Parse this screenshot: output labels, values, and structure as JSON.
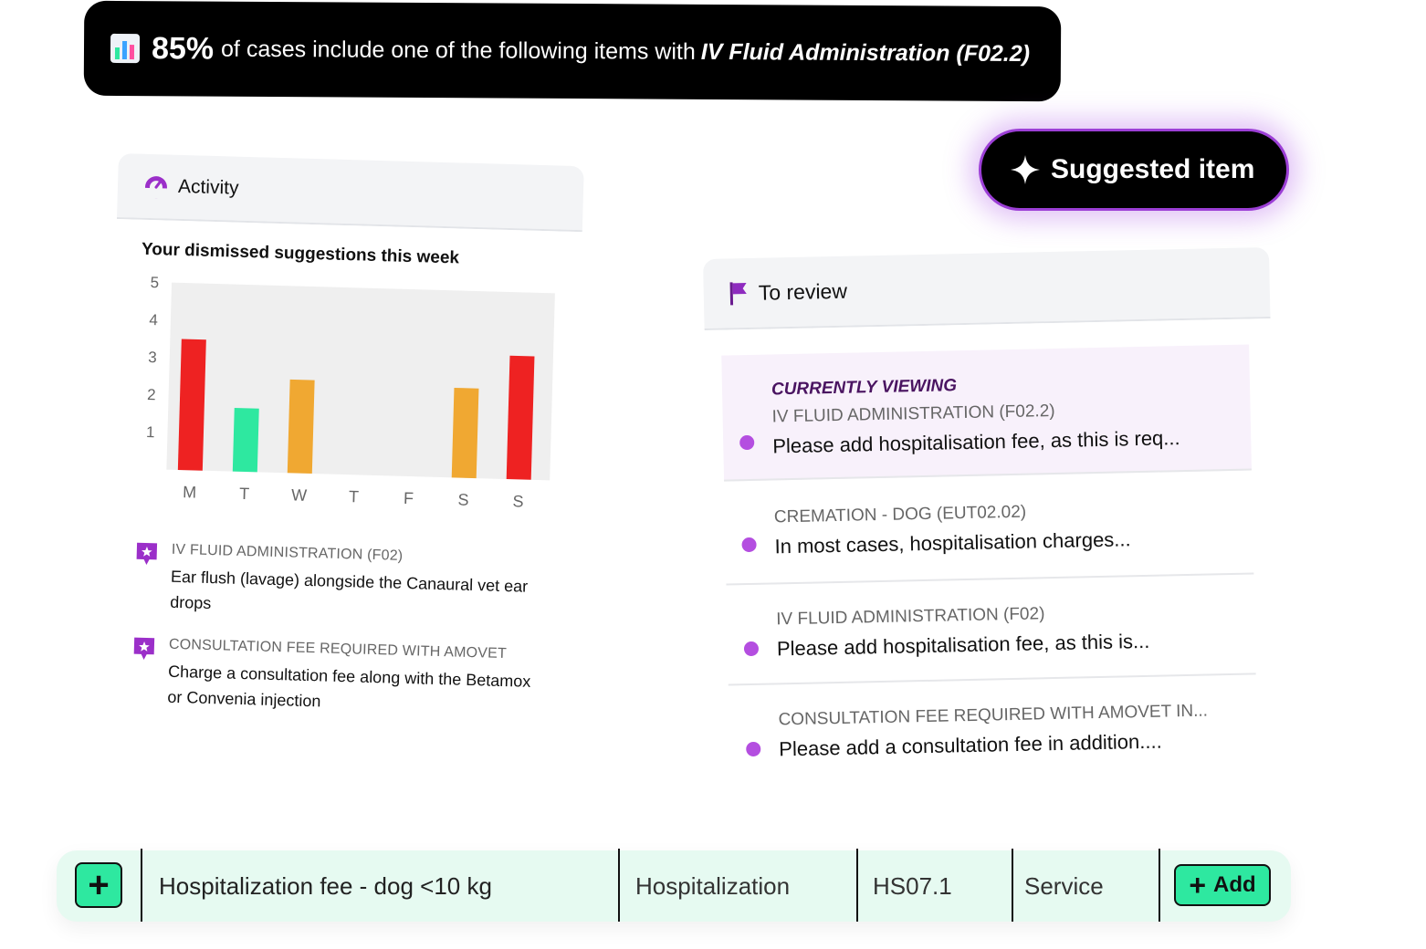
{
  "banner": {
    "percent": "85%",
    "text": "of cases include one of the following items with",
    "item": "IV Fluid Administration (F02.2)",
    "icon": "bar-chart-icon"
  },
  "suggested": {
    "label": "Suggested item",
    "icon": "sparkle-icon"
  },
  "activity": {
    "title": "Activity",
    "icon": "gauge-icon",
    "subtitle": "Your dismissed suggestions this week",
    "suggestions": [
      {
        "title": "IV FLUID ADMINISTRATION (F02)",
        "body": "Ear flush (lavage) alongside the Canaural vet ear drops",
        "icon": "message-star-icon"
      },
      {
        "title": "CONSULTATION FEE REQUIRED WITH AMOVET",
        "body": "Charge a consultation fee along with the Betamox or Convenia injection",
        "icon": "message-star-icon"
      }
    ]
  },
  "chart_data": {
    "type": "bar",
    "categories": [
      "M",
      "T",
      "W",
      "T",
      "F",
      "S",
      "S"
    ],
    "values": [
      3.5,
      1.7,
      2.5,
      0,
      0,
      2.4,
      3.3
    ],
    "colors": [
      "#ee2222",
      "#2ee8a0",
      "#f0a832",
      null,
      null,
      "#f0a832",
      "#ee2222"
    ],
    "yticks": [
      "1",
      "2",
      "3",
      "4",
      "5"
    ],
    "ylim": [
      0,
      5
    ],
    "grid": false,
    "title": "",
    "xlabel": "",
    "ylabel": ""
  },
  "review": {
    "title": "To review",
    "icon": "flag-icon",
    "current_label": "CURRENTLY VIEWING",
    "items": [
      {
        "code": "IV FLUID ADMINISTRATION (F02.2)",
        "message": "Please add hospitalisation fee, as this is req..."
      },
      {
        "code": "CREMATION - DOG (EUT02.02)",
        "message": "In most cases, hospitalisation charges..."
      },
      {
        "code": "IV FLUID ADMINISTRATION (F02)",
        "message": "Please add hospitalisation fee, as this is..."
      },
      {
        "code": "CONSULTATION FEE REQUIRED WITH AMOVET IN...",
        "message": "Please add a consultation fee in addition...."
      }
    ]
  },
  "bottom_row": {
    "plus": "+",
    "name": "Hospitalization fee - dog <10 kg",
    "category": "Hospitalization",
    "code": "HS07.1",
    "type": "Service",
    "add_label": "Add",
    "add_plus": "+"
  }
}
